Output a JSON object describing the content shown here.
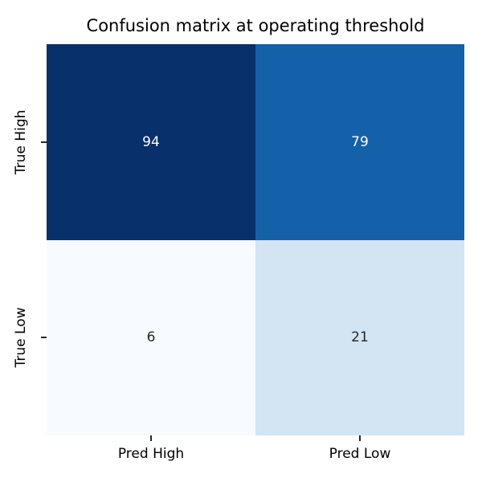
{
  "chart_data": {
    "type": "heatmap",
    "title": "Confusion matrix at operating threshold",
    "x_tick_labels": [
      "Pred High",
      "Pred Low"
    ],
    "y_tick_labels": [
      "True High",
      "True Low"
    ],
    "categories_x": [
      "Pred High",
      "Pred Low"
    ],
    "categories_y": [
      "True High",
      "True Low"
    ],
    "values": [
      [
        94,
        79
      ],
      [
        6,
        21
      ]
    ],
    "value_range": [
      6,
      94
    ],
    "colormap": "Blues",
    "legend_position": "none",
    "grid": false,
    "cells": [
      {
        "row": "True High",
        "col": "Pred High",
        "value": "94",
        "bg": "#08306b",
        "fg": "#ffffff"
      },
      {
        "row": "True High",
        "col": "Pred Low",
        "value": "79",
        "bg": "#1561a9",
        "fg": "#ffffff"
      },
      {
        "row": "True Low",
        "col": "Pred High",
        "value": "6",
        "bg": "#f7fbff",
        "fg": "#262626"
      },
      {
        "row": "True Low",
        "col": "Pred Low",
        "value": "21",
        "bg": "#d3e4f3",
        "fg": "#262626"
      }
    ],
    "colors": {
      "title_text": "#000000",
      "tick_mark": "#262626",
      "background": "#ffffff"
    }
  }
}
